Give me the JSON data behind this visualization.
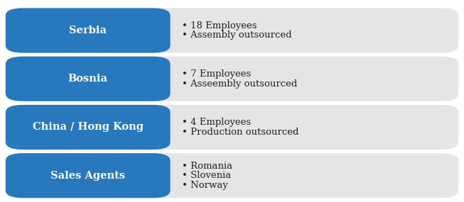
{
  "rows": [
    {
      "label": "Serbia",
      "bullets": [
        "18 Employees",
        "Assembly outsourced"
      ]
    },
    {
      "label": "Bosnia",
      "bullets": [
        "7 Employees",
        "Asseembly outsourced"
      ]
    },
    {
      "label": "China / Hong Kong",
      "bullets": [
        "4 Employees",
        "Production outsourced"
      ]
    },
    {
      "label": "Sales Agents",
      "bullets": [
        "Romania",
        "Slovenia",
        "Norway"
      ]
    }
  ],
  "blue_color": "#2878BE",
  "bg_color": "#E5E5E5",
  "white_bg": "#FFFFFF",
  "label_text_color": "#FFFFFF",
  "bullet_text_color": "#222222",
  "label_fontsize": 10.5,
  "bullet_fontsize": 9.5,
  "fig_width": 6.53,
  "fig_height": 2.85,
  "dpi": 100
}
